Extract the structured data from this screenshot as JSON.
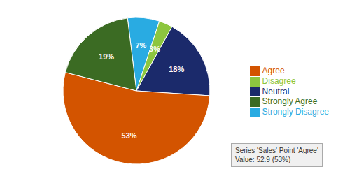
{
  "chart_data": {
    "type": "pie",
    "categories": [
      "Strongly Disagree",
      "Disagree",
      "Neutral",
      "Agree",
      "Strongly Agree"
    ],
    "values": [
      7,
      3,
      18,
      53,
      19
    ],
    "value_labels": [
      "7%",
      "3%",
      "18%",
      "53%",
      "19%"
    ],
    "colors": [
      "#29ABE2",
      "#8DC63F",
      "#1B2A6B",
      "#D35400",
      "#3B6B23"
    ],
    "data_labels": true,
    "legend": "right",
    "annotations": [
      "Series 'Sales' Point 'Agree'\nValue: 52.9 (53%)"
    ]
  }
}
